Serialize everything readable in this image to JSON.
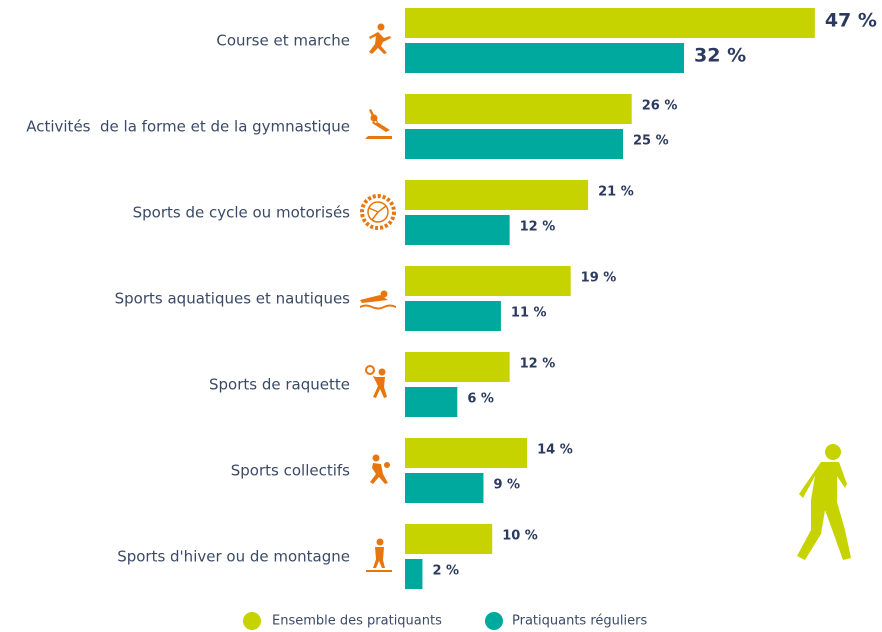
{
  "chart_data": {
    "type": "bar",
    "orientation": "horizontal",
    "categories": [
      "Course et marche",
      "Activités  de la forme et de la gymnastique",
      "Sports de cycle ou motorisés",
      "Sports aquatiques et nautiques",
      "Sports de raquette",
      "Sports collectifs",
      "Sports d'hiver ou de montagne"
    ],
    "series": [
      {
        "name": "Ensemble des pratiquants",
        "color": "#c6d300",
        "values": [
          47,
          26,
          21,
          19,
          12,
          14,
          10
        ],
        "value_labels": [
          "47 %",
          "26 %",
          "21 %",
          "19 %",
          "12 %",
          "14 %",
          "10 %"
        ]
      },
      {
        "name": "Pratiquants réguliers",
        "color": "#00a99d",
        "values": [
          32,
          25,
          12,
          11,
          6,
          9,
          2
        ],
        "value_labels": [
          "32 %",
          "25 %",
          "12 %",
          "11 %",
          "6 %",
          "9 %",
          "2 %"
        ]
      }
    ]
  }
}
